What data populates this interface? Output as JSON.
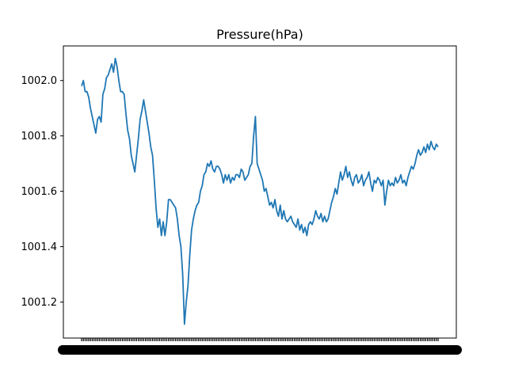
{
  "chart_data": {
    "type": "line",
    "title": "Pressure(hPa)",
    "xlabel": "",
    "ylabel": "",
    "ylim": [
      1001.07,
      1002.125
    ],
    "yticks": [
      "1001.2",
      "1001.4",
      "1001.6",
      "1001.8",
      "1002.0"
    ],
    "ytick_values": [
      1001.2,
      1001.4,
      1001.6,
      1001.8,
      1002.0
    ],
    "x_tick_labels_legible": false,
    "grid": false,
    "legend": "none",
    "series": [
      {
        "color": "#1f77b4",
        "values": [
          1001.98,
          1002.0,
          1001.96,
          1001.96,
          1001.94,
          1001.9,
          1001.87,
          1001.84,
          1001.81,
          1001.86,
          1001.87,
          1001.85,
          1001.95,
          1001.97,
          1002.01,
          1002.02,
          1002.04,
          1002.06,
          1002.03,
          1002.08,
          1002.05,
          1002.0,
          1001.96,
          1001.96,
          1001.95,
          1001.88,
          1001.82,
          1001.79,
          1001.73,
          1001.7,
          1001.67,
          1001.73,
          1001.79,
          1001.86,
          1001.89,
          1001.93,
          1001.89,
          1001.85,
          1001.81,
          1001.76,
          1001.73,
          1001.64,
          1001.54,
          1001.47,
          1001.5,
          1001.44,
          1001.49,
          1001.44,
          1001.49,
          1001.57,
          1001.57,
          1001.56,
          1001.55,
          1001.54,
          1001.5,
          1001.44,
          1001.4,
          1001.3,
          1001.12,
          1001.2,
          1001.26,
          1001.37,
          1001.46,
          1001.5,
          1001.53,
          1001.55,
          1001.56,
          1001.6,
          1001.62,
          1001.66,
          1001.67,
          1001.7,
          1001.69,
          1001.71,
          1001.68,
          1001.67,
          1001.69,
          1001.69,
          1001.68,
          1001.66,
          1001.63,
          1001.66,
          1001.64,
          1001.66,
          1001.63,
          1001.65,
          1001.64,
          1001.66,
          1001.66,
          1001.65,
          1001.68,
          1001.67,
          1001.64,
          1001.65,
          1001.66,
          1001.69,
          1001.7,
          1001.8,
          1001.87,
          1001.7,
          1001.68,
          1001.66,
          1001.64,
          1001.6,
          1001.61,
          1001.58,
          1001.55,
          1001.56,
          1001.54,
          1001.57,
          1001.53,
          1001.51,
          1001.55,
          1001.5,
          1001.53,
          1001.5,
          1001.49,
          1001.5,
          1001.51,
          1001.49,
          1001.48,
          1001.47,
          1001.5,
          1001.46,
          1001.48,
          1001.45,
          1001.47,
          1001.44,
          1001.48,
          1001.49,
          1001.48,
          1001.5,
          1001.53,
          1001.51,
          1001.5,
          1001.52,
          1001.49,
          1001.51,
          1001.49,
          1001.5,
          1001.53,
          1001.56,
          1001.58,
          1001.61,
          1001.59,
          1001.63,
          1001.67,
          1001.64,
          1001.66,
          1001.69,
          1001.65,
          1001.67,
          1001.64,
          1001.62,
          1001.65,
          1001.66,
          1001.63,
          1001.64,
          1001.66,
          1001.62,
          1001.64,
          1001.65,
          1001.67,
          1001.63,
          1001.6,
          1001.64,
          1001.63,
          1001.65,
          1001.64,
          1001.62,
          1001.64,
          1001.55,
          1001.6,
          1001.64,
          1001.62,
          1001.63,
          1001.62,
          1001.65,
          1001.63,
          1001.64,
          1001.66,
          1001.63,
          1001.64,
          1001.62,
          1001.65,
          1001.67,
          1001.69,
          1001.68,
          1001.7,
          1001.73,
          1001.75,
          1001.73,
          1001.74,
          1001.76,
          1001.74,
          1001.77,
          1001.75,
          1001.78,
          1001.76,
          1001.75,
          1001.77,
          1001.76
        ]
      }
    ]
  }
}
